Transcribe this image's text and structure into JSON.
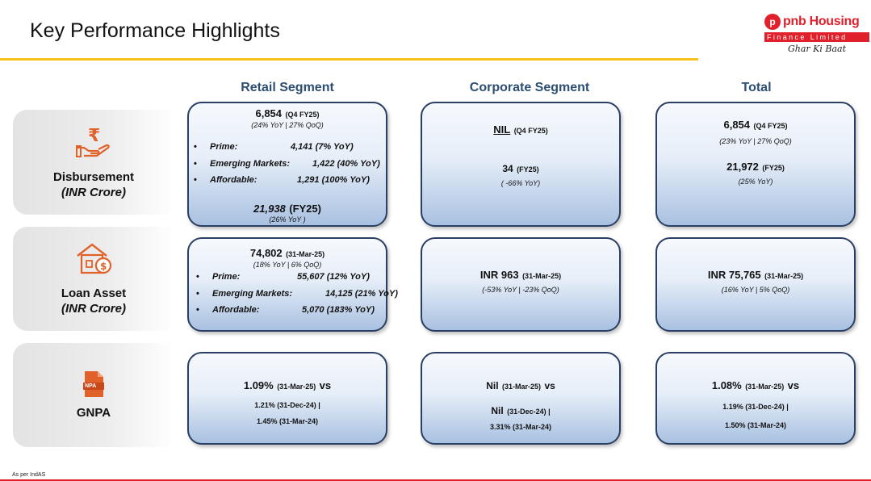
{
  "title": "Key Performance Highlights",
  "logo": {
    "brand": "pnb Housing",
    "band": "Finance Limited",
    "tagline": "Ghar Ki Baat",
    "mark": "p"
  },
  "columns": {
    "retail": "Retail Segment",
    "corporate": "Corporate Segment",
    "total": "Total"
  },
  "rows": {
    "disbursement": {
      "label": "Disbursement",
      "unit": "(INR Crore)",
      "icon": "rupee-hand-icon"
    },
    "loan_asset": {
      "label": "Loan Asset",
      "unit": "(INR Crore)",
      "icon": "house-money-icon"
    },
    "gnpa": {
      "label": "GNPA",
      "icon": "npa-document-icon",
      "icon_text": "NPA"
    }
  },
  "disbursement": {
    "retail": {
      "value": "6,854",
      "period": "(Q4 FY25)",
      "growth": "(24% YoY |  27% QoQ)",
      "items": [
        {
          "label": "Prime:",
          "value": "4,141 (7% YoY)"
        },
        {
          "label": "Emerging Markets:",
          "value": "1,422 (40% YoY)"
        },
        {
          "label": "Affordable:",
          "value": "1,291 (100% YoY)"
        }
      ],
      "fy_value": "21,938",
      "fy_period": "(FY25)",
      "fy_growth": "(26% YoY )"
    },
    "corporate": {
      "q_value": "NIL",
      "q_period": "(Q4 FY25)",
      "fy_value": "34",
      "fy_period": "(FY25)",
      "fy_growth": "( -66% YoY)"
    },
    "total": {
      "q_value": "6,854",
      "q_period": "(Q4 FY25)",
      "q_growth": "(23% YoY | 27% QoQ)",
      "fy_value": "21,972",
      "fy_period": "(FY25)",
      "fy_growth": "(25% YoY)"
    }
  },
  "loan_asset": {
    "retail": {
      "value": "74,802",
      "date": "(31-Mar-25)",
      "growth": "(18% YoY | 6% QoQ)",
      "items": [
        {
          "label": "Prime:",
          "value": "55,607 (12% YoY)"
        },
        {
          "label": "Emerging Markets:",
          "value": "14,125 (21% YoY)"
        },
        {
          "label": "Affordable:",
          "value": "5,070 (183% YoY)"
        }
      ]
    },
    "corporate": {
      "value": "INR 963",
      "date": "(31-Mar-25)",
      "growth": "(-53% YoY | -23% QoQ)"
    },
    "total": {
      "value": "INR 75,765",
      "date": "(31-Mar-25)",
      "growth": "(16% YoY | 5% QoQ)"
    }
  },
  "gnpa": {
    "retail": {
      "value": "1.09%",
      "date": "(31-Mar-25)",
      "vs": "vs",
      "line2": "1.21% (31-Dec-24) |",
      "line3": "1.45% (31-Mar-24)"
    },
    "corporate": {
      "value": "Nil",
      "date": "(31-Mar-25)",
      "vs": "vs",
      "line2_value": "Nil",
      "line2_date": "(31-Dec-24) |",
      "line3": "3.31% (31-Mar-24)"
    },
    "total": {
      "value": "1.08%",
      "date": "(31-Mar-25)",
      "vs": "vs",
      "line2": "1.19% (31-Dec-24) |",
      "line3": "1.50% (31-Mar-24)"
    }
  },
  "footnote": "As per IndAS",
  "colors": {
    "brand_red": "#e0202a",
    "accent_yellow": "#f4c21a",
    "header_blue": "#2c4e72",
    "card_border": "#2a3f63",
    "icon_orange": "#e0622a"
  }
}
